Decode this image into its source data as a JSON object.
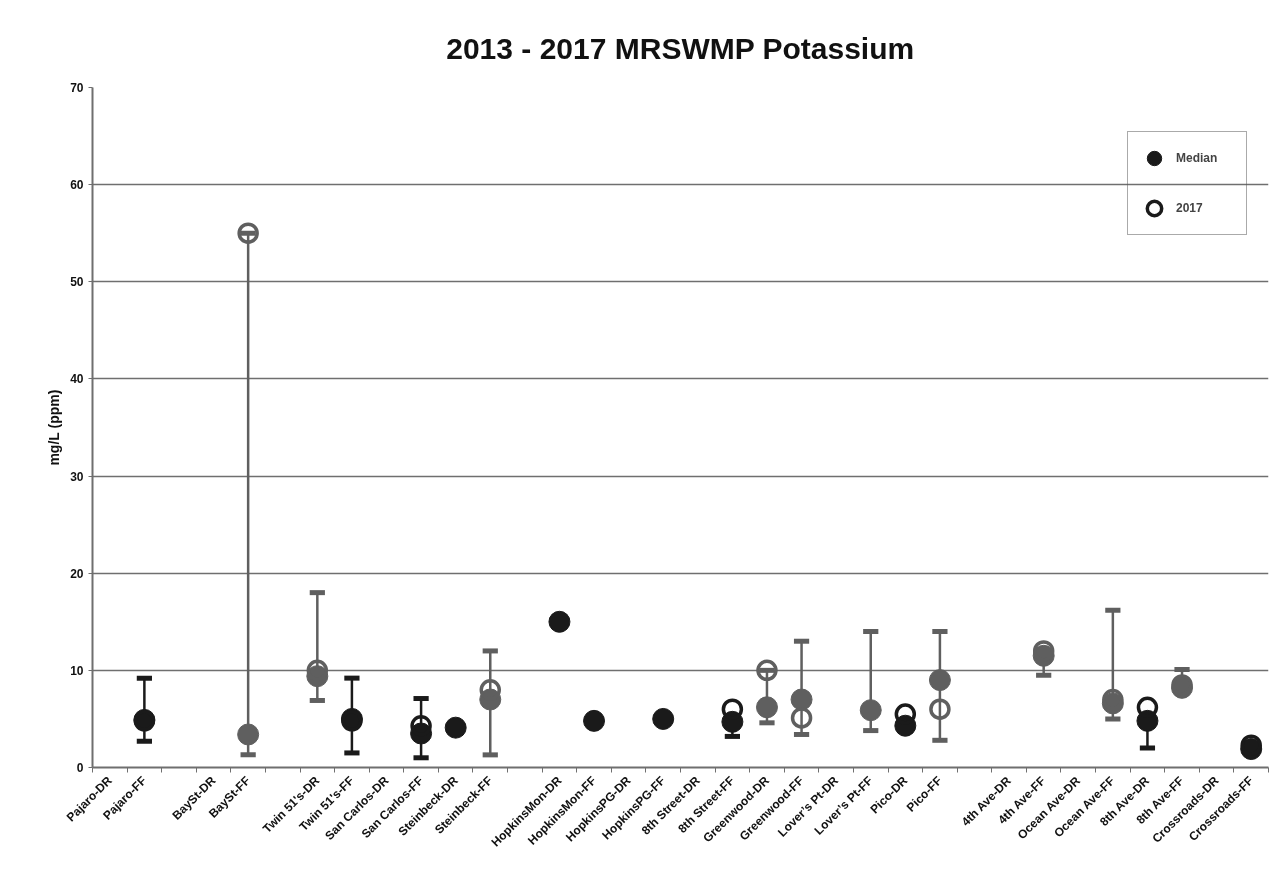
{
  "chart_data": {
    "type": "scatter",
    "title": "2013 - 2017 MRSWMP Potassium",
    "ylabel": "mg/L (ppm)",
    "categories": [
      "Pajaro-DR",
      "Pajaro-FF",
      null,
      "BaySt-DR",
      "BaySt-FF",
      null,
      "Twin 51's-DR",
      "Twin 51's-FF",
      "San Carlos-DR",
      "San Carlos-FF",
      "Steinbeck-DR",
      "Steinbeck-FF",
      null,
      "HopkinsMon-DR",
      "HopkinsMon-FF",
      "HopkinsPG-DR",
      "HopkinsPG-FF",
      "8th Street-DR",
      "8th Street-FF",
      "Greenwood-DR",
      "Greenwood-FF",
      "Lover’s Pt-DR",
      "Lover’s Pt-FF",
      "Pico-DR",
      "Pico-FF",
      null,
      "4th Ave-DR",
      "4th Ave-FF",
      "Ocean Ave-DR",
      "Ocean Ave-FF",
      "8th Ave-DR",
      "8th Ave-FF",
      "Crossroads-DR",
      "Crossroads-FF"
    ],
    "series": [
      {
        "name": "Median",
        "marker": "circle",
        "values": [
          null,
          4.9,
          null,
          null,
          3.4,
          null,
          9.4,
          5.0,
          null,
          3.5,
          4.1,
          7.0,
          null,
          15.0,
          4.8,
          null,
          5.0,
          null,
          4.7,
          6.2,
          7.0,
          null,
          5.9,
          4.3,
          9.0,
          null,
          null,
          11.5,
          null,
          6.6,
          4.8,
          8.2,
          null,
          1.9
        ],
        "colors": [
          null,
          "#1a1a1a",
          null,
          null,
          "#5f5f5f",
          null,
          "#5f5f5f",
          "#1a1a1a",
          null,
          "#1a1a1a",
          "#1a1a1a",
          "#5f5f5f",
          null,
          "#1a1a1a",
          "#1a1a1a",
          null,
          "#1a1a1a",
          null,
          "#1a1a1a",
          "#5f5f5f",
          "#5f5f5f",
          null,
          "#5f5f5f",
          "#1a1a1a",
          "#5f5f5f",
          null,
          null,
          "#5f5f5f",
          null,
          "#5f5f5f",
          "#1a1a1a",
          "#5f5f5f",
          null,
          "#1a1a1a"
        ],
        "errors": [
          null,
          [
            2.7,
            9.2
          ],
          null,
          null,
          [
            1.3,
            55
          ],
          null,
          [
            6.9,
            18.0
          ],
          [
            1.5,
            9.2
          ],
          null,
          [
            1.0,
            7.1
          ],
          null,
          [
            1.3,
            12.0
          ],
          null,
          null,
          null,
          null,
          null,
          null,
          [
            3.2,
            4.7
          ],
          [
            4.6,
            10.0
          ],
          [
            3.4,
            13.0
          ],
          null,
          [
            3.8,
            14.0
          ],
          null,
          [
            2.8,
            14.0
          ],
          null,
          null,
          [
            9.5,
            11.5
          ],
          null,
          [
            5.0,
            16.2
          ],
          [
            2.0,
            4.8
          ],
          [
            8.2,
            10.1
          ],
          null,
          null
        ]
      },
      {
        "name": "2017",
        "marker": "circle_open",
        "values": [
          null,
          4.8,
          null,
          null,
          55,
          null,
          10.0,
          4.8,
          null,
          4.3,
          null,
          8.0,
          null,
          null,
          null,
          null,
          null,
          null,
          6.0,
          10.0,
          5.1,
          null,
          null,
          5.5,
          6.0,
          null,
          null,
          12.0,
          null,
          7.0,
          6.2,
          8.5,
          null,
          2.3
        ],
        "colors": [
          null,
          "#1a1a1a",
          null,
          null,
          "#5f5f5f",
          null,
          "#5f5f5f",
          "#1a1a1a",
          null,
          "#1a1a1a",
          null,
          "#5f5f5f",
          null,
          null,
          null,
          null,
          null,
          null,
          "#1a1a1a",
          "#5f5f5f",
          "#5f5f5f",
          null,
          null,
          "#1a1a1a",
          "#5f5f5f",
          null,
          null,
          "#5f5f5f",
          null,
          "#5f5f5f",
          "#1a1a1a",
          "#5f5f5f",
          null,
          "#1a1a1a"
        ]
      }
    ],
    "ylim": [
      0,
      70
    ],
    "yticks": [
      0,
      10,
      20,
      30,
      40,
      50,
      60,
      70
    ],
    "grid": "y",
    "legend": "top right"
  }
}
